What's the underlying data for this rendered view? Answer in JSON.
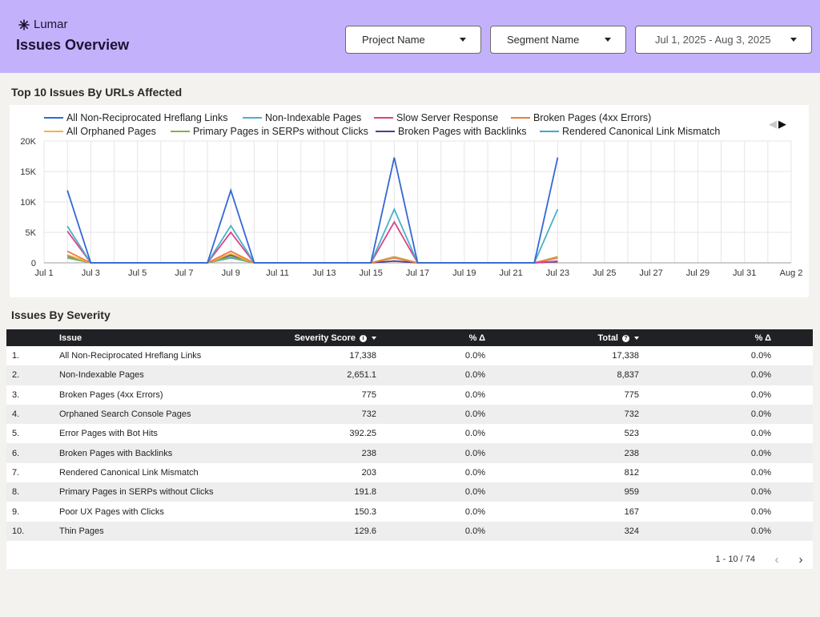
{
  "app": {
    "brand": "Lumar",
    "title": "Issues Overview"
  },
  "filters": {
    "project": "Project Name",
    "segment": "Segment Name",
    "date_range": "Jul 1, 2025 - Aug 3, 2025"
  },
  "chart_section": {
    "title": "Top 10 Issues By URLs Affected"
  },
  "chart_data": {
    "type": "line",
    "title": "Top 10 Issues By URLs Affected",
    "xlabel": "",
    "ylabel": "",
    "ylim": [
      0,
      20000
    ],
    "yticks": [
      "0",
      "5K",
      "10K",
      "15K",
      "20K"
    ],
    "xlim": [
      "Jul 1",
      "Aug 2"
    ],
    "xticks": [
      "Jul 1",
      "Jul 3",
      "Jul 5",
      "Jul 7",
      "Jul 9",
      "Jul 11",
      "Jul 13",
      "Jul 15",
      "Jul 17",
      "Jul 19",
      "Jul 21",
      "Jul 23",
      "Jul 25",
      "Jul 27",
      "Jul 29",
      "Jul 31",
      "Aug 2"
    ],
    "grid": true,
    "legend_position": "top",
    "series": [
      {
        "name": "All Non-Reciprocated Hreflang Links",
        "color": "#3367d6",
        "x": [
          "Jul 2",
          "Jul 3",
          "Jul 8",
          "Jul 9",
          "Jul 10",
          "Jul 15",
          "Jul 16",
          "Jul 17",
          "Jul 22",
          "Jul 23"
        ],
        "values": [
          11900,
          0,
          0,
          11900,
          0,
          0,
          17300,
          0,
          0,
          17300
        ]
      },
      {
        "name": "Non-Indexable Pages",
        "color": "#4ab0c8",
        "x": [
          "Jul 2",
          "Jul 3",
          "Jul 8",
          "Jul 9",
          "Jul 10",
          "Jul 15",
          "Jul 16",
          "Jul 17",
          "Jul 22",
          "Jul 23"
        ],
        "values": [
          6000,
          0,
          0,
          6100,
          0,
          0,
          8800,
          0,
          0,
          8800
        ]
      },
      {
        "name": "Slow Server Response",
        "color": "#d9418a",
        "x": [
          "Jul 2",
          "Jul 3",
          "Jul 8",
          "Jul 9",
          "Jul 10",
          "Jul 15",
          "Jul 16",
          "Jul 17",
          "Jul 22",
          "Jul 23"
        ],
        "values": [
          5200,
          0,
          0,
          5000,
          0,
          0,
          6700,
          0,
          0,
          300
        ]
      },
      {
        "name": "Broken Pages (4xx Errors)",
        "color": "#f07b3f",
        "x": [
          "Jul 2",
          "Jul 3",
          "Jul 8",
          "Jul 9",
          "Jul 10",
          "Jul 15",
          "Jul 16",
          "Jul 17",
          "Jul 22",
          "Jul 23"
        ],
        "values": [
          1900,
          0,
          0,
          1900,
          0,
          0,
          800,
          0,
          0,
          800
        ]
      },
      {
        "name": "All Orphaned Pages",
        "color": "#f4b63f",
        "x": [
          "Jul 2",
          "Jul 3",
          "Jul 8",
          "Jul 9",
          "Jul 10",
          "Jul 15",
          "Jul 16",
          "Jul 17",
          "Jul 22",
          "Jul 23"
        ],
        "values": [
          1300,
          0,
          0,
          1500,
          0,
          0,
          900,
          0,
          0,
          900
        ]
      },
      {
        "name": "Primary Pages in SERPs without Clicks",
        "color": "#8cae48",
        "x": [
          "Jul 2",
          "Jul 3",
          "Jul 8",
          "Jul 9",
          "Jul 10",
          "Jul 15",
          "Jul 16",
          "Jul 17",
          "Jul 22",
          "Jul 23"
        ],
        "values": [
          900,
          0,
          0,
          1000,
          0,
          0,
          1000,
          0,
          0,
          1000
        ]
      },
      {
        "name": "Broken Pages with Backlinks",
        "color": "#4a3b9a",
        "x": [
          "Jul 2",
          "Jul 3",
          "Jul 8",
          "Jul 9",
          "Jul 10",
          "Jul 15",
          "Jul 16",
          "Jul 17",
          "Jul 22",
          "Jul 23"
        ],
        "values": [
          1200,
          0,
          0,
          1300,
          0,
          0,
          300,
          0,
          0,
          200
        ]
      },
      {
        "name": "Rendered Canonical Link Mismatch",
        "color": "#45a4d4",
        "x": [
          "Jul 2",
          "Jul 3",
          "Jul 8",
          "Jul 9",
          "Jul 10",
          "Jul 15",
          "Jul 16",
          "Jul 17",
          "Jul 22",
          "Jul 23"
        ],
        "values": [
          800,
          0,
          0,
          800,
          0,
          0,
          800,
          0,
          0,
          800
        ]
      }
    ]
  },
  "table_section": {
    "title": "Issues By Severity"
  },
  "table": {
    "headers": {
      "issue": "Issue",
      "severity": "Severity Score",
      "delta1": "% Δ",
      "total": "Total",
      "delta2": "% Δ"
    },
    "rows": [
      {
        "idx": "1.",
        "issue": "All Non-Reciprocated Hreflang Links",
        "severity": "17,338",
        "delta1": "0.0%",
        "total": "17,338",
        "delta2": "0.0%"
      },
      {
        "idx": "2.",
        "issue": "Non-Indexable Pages",
        "severity": "2,651.1",
        "delta1": "0.0%",
        "total": "8,837",
        "delta2": "0.0%"
      },
      {
        "idx": "3.",
        "issue": "Broken Pages (4xx Errors)",
        "severity": "775",
        "delta1": "0.0%",
        "total": "775",
        "delta2": "0.0%"
      },
      {
        "idx": "4.",
        "issue": "Orphaned Search Console Pages",
        "severity": "732",
        "delta1": "0.0%",
        "total": "732",
        "delta2": "0.0%"
      },
      {
        "idx": "5.",
        "issue": "Error Pages with Bot Hits",
        "severity": "392.25",
        "delta1": "0.0%",
        "total": "523",
        "delta2": "0.0%"
      },
      {
        "idx": "6.",
        "issue": "Broken Pages with Backlinks",
        "severity": "238",
        "delta1": "0.0%",
        "total": "238",
        "delta2": "0.0%"
      },
      {
        "idx": "7.",
        "issue": "Rendered Canonical Link Mismatch",
        "severity": "203",
        "delta1": "0.0%",
        "total": "812",
        "delta2": "0.0%"
      },
      {
        "idx": "8.",
        "issue": "Primary Pages in SERPs without Clicks",
        "severity": "191.8",
        "delta1": "0.0%",
        "total": "959",
        "delta2": "0.0%"
      },
      {
        "idx": "9.",
        "issue": "Poor UX Pages with Clicks",
        "severity": "150.3",
        "delta1": "0.0%",
        "total": "167",
        "delta2": "0.0%"
      },
      {
        "idx": "10.",
        "issue": "Thin Pages",
        "severity": "129.6",
        "delta1": "0.0%",
        "total": "324",
        "delta2": "0.0%"
      }
    ],
    "pagination": "1 - 10 / 74"
  },
  "icons": {
    "logo": "lumar-asterisk-icon",
    "dropdown": "caret-down-icon",
    "info": "info-icon",
    "sort": "sort-desc-icon",
    "prev": "chevron-left-icon",
    "next": "chevron-right-icon"
  }
}
